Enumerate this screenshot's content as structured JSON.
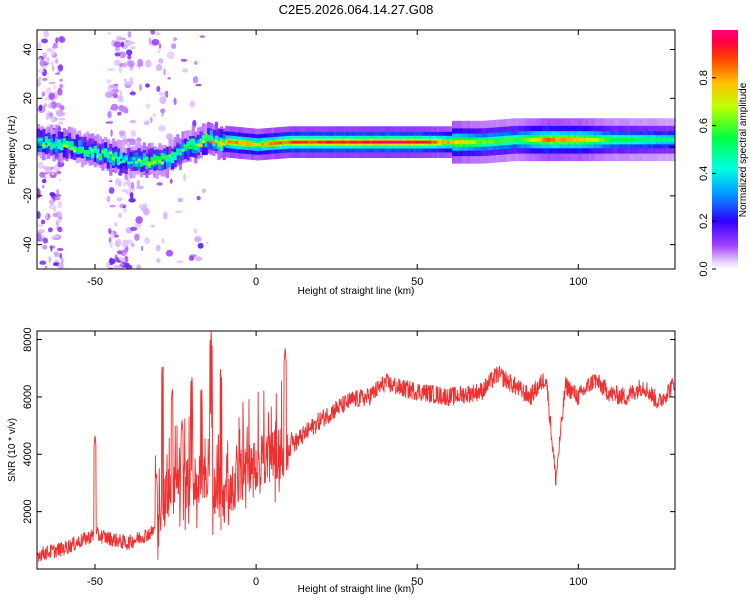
{
  "title": "C2E5.2026.064.14.27.G08",
  "chart_data": [
    {
      "type": "heatmap",
      "name": "spectrogram",
      "xlabel": "Height of straight line (km)",
      "ylabel": "Frequency (Hz)",
      "xlim": [
        -68,
        130
      ],
      "ylim": [
        -50,
        48
      ],
      "xticks": [
        -50,
        0,
        50,
        100
      ],
      "yticks": [
        -40,
        -20,
        0,
        20,
        40
      ],
      "colorbar": {
        "label": "Normalized spectral amplitude",
        "range": [
          0,
          1
        ],
        "ticks": [
          0.0,
          0.2,
          0.4,
          0.6,
          0.8
        ],
        "colors": [
          "#ffffff",
          "#c080ff",
          "#6000ff",
          "#0000ff",
          "#00ffff",
          "#00ff00",
          "#ffff00",
          "#ff8000",
          "#ff0000",
          "#ff0080"
        ]
      },
      "ridge": {
        "description": "Signal frequency track vs height",
        "points": [
          {
            "x": -68,
            "freq": 2,
            "amp": 0.5
          },
          {
            "x": -60,
            "freq": 1,
            "amp": 0.55
          },
          {
            "x": -52,
            "freq": -2,
            "amp": 0.5
          },
          {
            "x": -45,
            "freq": -4,
            "amp": 0.55
          },
          {
            "x": -40,
            "freq": -6,
            "amp": 0.45
          },
          {
            "x": -35,
            "freq": -6,
            "amp": 0.6
          },
          {
            "x": -28,
            "freq": -5,
            "amp": 0.55
          },
          {
            "x": -22,
            "freq": 0,
            "amp": 0.5
          },
          {
            "x": -15,
            "freq": 3,
            "amp": 0.65
          },
          {
            "x": -8,
            "freq": 2,
            "amp": 0.8
          },
          {
            "x": 0,
            "freq": 1,
            "amp": 0.75
          },
          {
            "x": 10,
            "freq": 2,
            "amp": 0.85
          },
          {
            "x": 20,
            "freq": 2,
            "amp": 0.9
          },
          {
            "x": 30,
            "freq": 2,
            "amp": 0.92
          },
          {
            "x": 40,
            "freq": 2,
            "amp": 0.95
          },
          {
            "x": 50,
            "freq": 2,
            "amp": 0.92
          },
          {
            "x": 60,
            "freq": 2,
            "amp": 0.75
          },
          {
            "x": 70,
            "freq": 2,
            "amp": 0.6
          },
          {
            "x": 80,
            "freq": 3,
            "amp": 0.55
          },
          {
            "x": 90,
            "freq": 3,
            "amp": 0.8
          },
          {
            "x": 100,
            "freq": 3,
            "amp": 0.75
          },
          {
            "x": 110,
            "freq": 3,
            "amp": 0.55
          },
          {
            "x": 120,
            "freq": 3,
            "amp": 0.5
          },
          {
            "x": 130,
            "freq": 3,
            "amp": 0.45
          }
        ]
      }
    },
    {
      "type": "line",
      "name": "snr",
      "xlabel": "Height of straight line (km)",
      "ylabel": "SNR (10 * v/v)",
      "xlim": [
        -68,
        130
      ],
      "ylim": [
        0,
        8300
      ],
      "xticks": [
        -50,
        0,
        50,
        100
      ],
      "yticks": [
        2000,
        4000,
        6000,
        8000
      ],
      "color": "#f03030",
      "envelope": [
        {
          "x": -68,
          "y": 500
        },
        {
          "x": -60,
          "y": 700
        },
        {
          "x": -50,
          "y": 1200
        },
        {
          "x": -40,
          "y": 900
        },
        {
          "x": -32,
          "y": 1300
        },
        {
          "x": -28,
          "y": 2600
        },
        {
          "x": -22,
          "y": 3000
        },
        {
          "x": -15,
          "y": 3200
        },
        {
          "x": -10,
          "y": 2500
        },
        {
          "x": -5,
          "y": 3300
        },
        {
          "x": 0,
          "y": 3700
        },
        {
          "x": 5,
          "y": 3900
        },
        {
          "x": 10,
          "y": 4200
        },
        {
          "x": 15,
          "y": 4700
        },
        {
          "x": 20,
          "y": 5200
        },
        {
          "x": 25,
          "y": 5600
        },
        {
          "x": 30,
          "y": 5900
        },
        {
          "x": 35,
          "y": 6000
        },
        {
          "x": 40,
          "y": 6500
        },
        {
          "x": 45,
          "y": 6300
        },
        {
          "x": 50,
          "y": 6200
        },
        {
          "x": 55,
          "y": 6100
        },
        {
          "x": 60,
          "y": 6000
        },
        {
          "x": 65,
          "y": 6100
        },
        {
          "x": 70,
          "y": 6200
        },
        {
          "x": 75,
          "y": 6800
        },
        {
          "x": 80,
          "y": 6400
        },
        {
          "x": 85,
          "y": 6000
        },
        {
          "x": 90,
          "y": 6700
        },
        {
          "x": 93,
          "y": 3100
        },
        {
          "x": 96,
          "y": 6400
        },
        {
          "x": 100,
          "y": 6000
        },
        {
          "x": 105,
          "y": 6600
        },
        {
          "x": 110,
          "y": 6100
        },
        {
          "x": 115,
          "y": 6000
        },
        {
          "x": 120,
          "y": 6400
        },
        {
          "x": 125,
          "y": 5800
        },
        {
          "x": 130,
          "y": 6500
        }
      ],
      "spikes": [
        {
          "x": -50,
          "y": 4700
        },
        {
          "x": -31,
          "y": 3400
        },
        {
          "x": -29,
          "y": 7300
        },
        {
          "x": -26,
          "y": 6300
        },
        {
          "x": -23,
          "y": 5200
        },
        {
          "x": -20,
          "y": 6800
        },
        {
          "x": -17,
          "y": 6500
        },
        {
          "x": -14,
          "y": 8300
        },
        {
          "x": -11,
          "y": 7000
        },
        {
          "x": -6,
          "y": 4100
        },
        {
          "x": 9,
          "y": 7700
        },
        {
          "x": 11,
          "y": 4800
        }
      ]
    }
  ]
}
